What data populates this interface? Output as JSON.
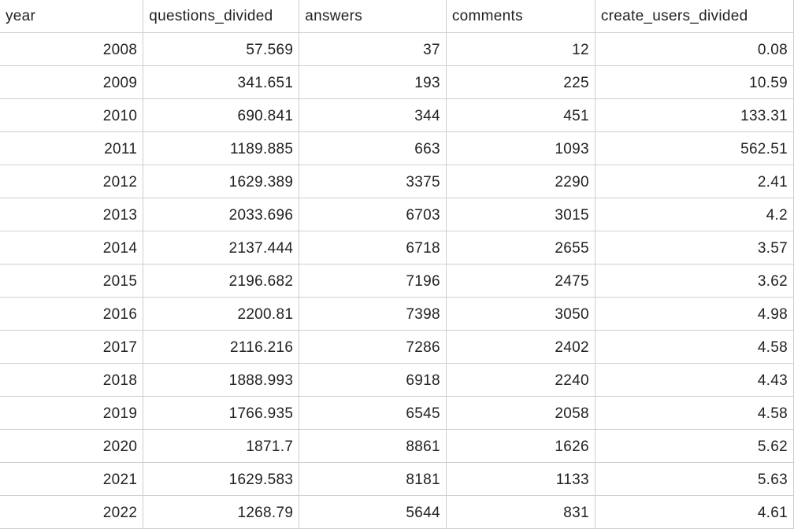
{
  "sheet": {
    "columns": [
      "year",
      "questions_divided",
      "answers",
      "comments",
      "create_users_divided"
    ],
    "rows": [
      [
        "2008",
        "57.569",
        "37",
        "12",
        "0.08"
      ],
      [
        "2009",
        "341.651",
        "193",
        "225",
        "10.59"
      ],
      [
        "2010",
        "690.841",
        "344",
        "451",
        "133.31"
      ],
      [
        "2011",
        "1189.885",
        "663",
        "1093",
        "562.51"
      ],
      [
        "2012",
        "1629.389",
        "3375",
        "2290",
        "2.41"
      ],
      [
        "2013",
        "2033.696",
        "6703",
        "3015",
        "4.2"
      ],
      [
        "2014",
        "2137.444",
        "6718",
        "2655",
        "3.57"
      ],
      [
        "2015",
        "2196.682",
        "7196",
        "2475",
        "3.62"
      ],
      [
        "2016",
        "2200.81",
        "7398",
        "3050",
        "4.98"
      ],
      [
        "2017",
        "2116.216",
        "7286",
        "2402",
        "4.58"
      ],
      [
        "2018",
        "1888.993",
        "6918",
        "2240",
        "4.43"
      ],
      [
        "2019",
        "1766.935",
        "6545",
        "2058",
        "4.58"
      ],
      [
        "2020",
        "1871.7",
        "8861",
        "1626",
        "5.62"
      ],
      [
        "2021",
        "1629.583",
        "8181",
        "1133",
        "5.63"
      ],
      [
        "2022",
        "1268.79",
        "5644",
        "831",
        "4.61"
      ]
    ]
  }
}
